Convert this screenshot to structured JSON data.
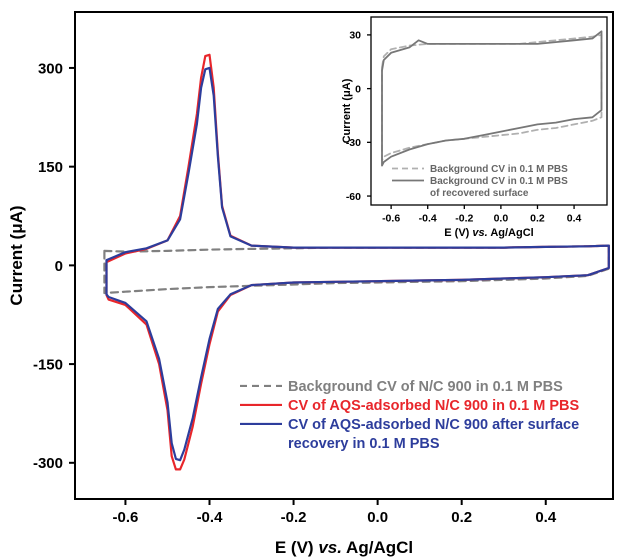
{
  "chart_data": [
    {
      "type": "line",
      "title": "",
      "xlabel": {
        "prefix": "E (V) ",
        "italic": "vs.",
        "suffix": " Ag/AgCl"
      },
      "ylabel": "Current (μA)",
      "xlim": [
        -0.72,
        0.56
      ],
      "ylim": [
        -355,
        385
      ],
      "x_ticks": [
        -0.6,
        -0.4,
        -0.2,
        0.0,
        0.2,
        0.4
      ],
      "x_tick_labels": [
        "-0.6",
        "-0.4",
        "-0.2",
        "0.0",
        "0.2",
        "0.4"
      ],
      "y_ticks": [
        -300,
        -150,
        0,
        150,
        300
      ],
      "y_tick_labels": [
        "-300",
        "-150",
        "0",
        "150",
        "300"
      ],
      "grid": false,
      "legend_position": "bottom-right",
      "series": [
        {
          "name": "Background CV of N/C 900 in 0.1 M PBS",
          "color": "#808080",
          "dash": "dashed",
          "x": [
            -0.65,
            -0.6,
            -0.5,
            -0.4,
            -0.3,
            -0.2,
            -0.1,
            0.0,
            0.1,
            0.2,
            0.3,
            0.4,
            0.5,
            0.55,
            0.55,
            0.5,
            0.4,
            0.3,
            0.2,
            0.1,
            0.0,
            -0.1,
            -0.2,
            -0.3,
            -0.4,
            -0.5,
            -0.6,
            -0.65,
            -0.65
          ],
          "y": [
            22,
            21,
            22,
            24,
            25,
            26,
            27,
            27,
            27,
            27,
            27,
            28,
            29,
            30,
            -5,
            -16,
            -20,
            -22,
            -24,
            -25,
            -26,
            -27,
            -29,
            -31,
            -33,
            -36,
            -40,
            -42,
            22
          ]
        },
        {
          "name": "CV of AQS-adsorbed N/C 900 in 0.1 M PBS",
          "color": "#e8262b",
          "dash": "solid",
          "x": [
            -0.645,
            -0.6,
            -0.55,
            -0.5,
            -0.47,
            -0.45,
            -0.43,
            -0.42,
            -0.41,
            -0.4,
            -0.39,
            -0.38,
            -0.37,
            -0.35,
            -0.3,
            -0.2,
            -0.1,
            0.0,
            0.1,
            0.2,
            0.3,
            0.4,
            0.5,
            0.55,
            0.55,
            0.5,
            0.4,
            0.3,
            0.2,
            0.1,
            0.0,
            -0.1,
            -0.2,
            -0.3,
            -0.35,
            -0.38,
            -0.4,
            -0.42,
            -0.44,
            -0.46,
            -0.47,
            -0.48,
            -0.49,
            -0.5,
            -0.52,
            -0.55,
            -0.6,
            -0.64,
            -0.645,
            -0.645
          ],
          "y": [
            5,
            18,
            25,
            38,
            75,
            150,
            230,
            285,
            318,
            320,
            270,
            170,
            90,
            45,
            30,
            27,
            27,
            27,
            27,
            27,
            27,
            28,
            29,
            30,
            -4,
            -15,
            -18,
            -20,
            -22,
            -23,
            -24,
            -25,
            -26,
            -30,
            -45,
            -70,
            -120,
            -180,
            -245,
            -295,
            -310,
            -310,
            -290,
            -220,
            -150,
            -90,
            -60,
            -52,
            -45,
            5
          ]
        },
        {
          "name": "CV of AQS-adsorbed N/C 900 after surface recovery in 0.1 M PBS",
          "color": "#2d3d9c",
          "dash": "solid",
          "x": [
            -0.645,
            -0.6,
            -0.55,
            -0.5,
            -0.47,
            -0.45,
            -0.43,
            -0.42,
            -0.41,
            -0.4,
            -0.39,
            -0.38,
            -0.37,
            -0.35,
            -0.3,
            -0.2,
            -0.1,
            0.0,
            0.1,
            0.2,
            0.3,
            0.4,
            0.5,
            0.55,
            0.55,
            0.5,
            0.4,
            0.3,
            0.2,
            0.1,
            0.0,
            -0.1,
            -0.2,
            -0.3,
            -0.35,
            -0.38,
            -0.4,
            -0.42,
            -0.44,
            -0.46,
            -0.47,
            -0.48,
            -0.49,
            -0.5,
            -0.52,
            -0.55,
            -0.6,
            -0.64,
            -0.645,
            -0.645
          ],
          "y": [
            8,
            20,
            26,
            38,
            70,
            140,
            215,
            270,
            298,
            300,
            258,
            165,
            88,
            44,
            30,
            27,
            27,
            27,
            27,
            27,
            27,
            28,
            29,
            30,
            -4,
            -15,
            -18,
            -20,
            -22,
            -23,
            -24,
            -25,
            -26,
            -30,
            -44,
            -66,
            -112,
            -170,
            -232,
            -280,
            -296,
            -294,
            -270,
            -208,
            -142,
            -85,
            -57,
            -48,
            -44,
            8
          ]
        }
      ],
      "legend": {
        "lines": [
          [
            "Background CV of N/C 900 in 0.1 M PBS"
          ],
          [
            "CV of AQS-adsorbed N/C 900 in 0.1 M PBS"
          ],
          [
            "CV of AQS-adsorbed N/C 900 after surface",
            "recovery in 0.1 M PBS"
          ]
        ]
      }
    },
    {
      "type": "line",
      "title": "",
      "xlabel": {
        "prefix": "E (V) ",
        "italic": "vs.",
        "suffix": " Ag/AgCl"
      },
      "ylabel": "Current (μA)",
      "xlim": [
        -0.71,
        0.58
      ],
      "ylim": [
        -65,
        40
      ],
      "x_ticks": [
        -0.6,
        -0.4,
        -0.2,
        0.0,
        0.2,
        0.4
      ],
      "x_tick_labels": [
        "-0.6",
        "-0.4",
        "-0.2",
        "0.0",
        "0.2",
        "0.4"
      ],
      "y_ticks": [
        -60,
        -30,
        0,
        30
      ],
      "y_tick_labels": [
        "-60",
        "-30",
        "0",
        "30"
      ],
      "grid": false,
      "legend_position": "bottom-left",
      "series": [
        {
          "name": "Background CV in 0.1 M PBS",
          "color": "#b0b0b0",
          "dash": "dashed",
          "x": [
            -0.65,
            -0.64,
            -0.6,
            -0.5,
            -0.4,
            -0.3,
            -0.2,
            -0.1,
            0.0,
            0.1,
            0.2,
            0.3,
            0.4,
            0.5,
            0.55,
            0.55,
            0.5,
            0.4,
            0.3,
            0.2,
            0.1,
            0.0,
            -0.1,
            -0.2,
            -0.3,
            -0.4,
            -0.5,
            -0.6,
            -0.64,
            -0.65,
            -0.65
          ],
          "y": [
            12,
            18,
            22,
            24,
            25,
            25,
            25,
            25,
            25,
            25,
            26,
            27,
            28,
            29,
            30,
            -16,
            -18,
            -20,
            -22,
            -23,
            -25,
            -26,
            -27,
            -28,
            -29,
            -31,
            -33,
            -36,
            -38,
            -40,
            12
          ]
        },
        {
          "name": "Background CV in 0.1 M PBS of recovered surface",
          "color": "#777777",
          "dash": "solid",
          "x": [
            -0.65,
            -0.64,
            -0.6,
            -0.5,
            -0.45,
            -0.4,
            -0.3,
            -0.2,
            -0.1,
            0.0,
            0.1,
            0.2,
            0.3,
            0.4,
            0.5,
            0.55,
            0.55,
            0.5,
            0.4,
            0.3,
            0.2,
            0.1,
            0.0,
            -0.1,
            -0.2,
            -0.3,
            -0.4,
            -0.5,
            -0.6,
            -0.64,
            -0.65,
            -0.65
          ],
          "y": [
            10,
            16,
            20,
            23,
            27,
            25,
            25,
            25,
            25,
            25,
            25,
            25,
            26,
            27,
            28,
            32,
            -12,
            -16,
            -17,
            -19,
            -20,
            -22,
            -24,
            -26,
            -28,
            -29,
            -31,
            -34,
            -38,
            -41,
            -43,
            10
          ]
        }
      ],
      "legend": {
        "lines": [
          [
            "Background CV in 0.1 M PBS"
          ],
          [
            "Background CV in 0.1 M PBS",
            "of recovered surface"
          ]
        ]
      }
    }
  ]
}
